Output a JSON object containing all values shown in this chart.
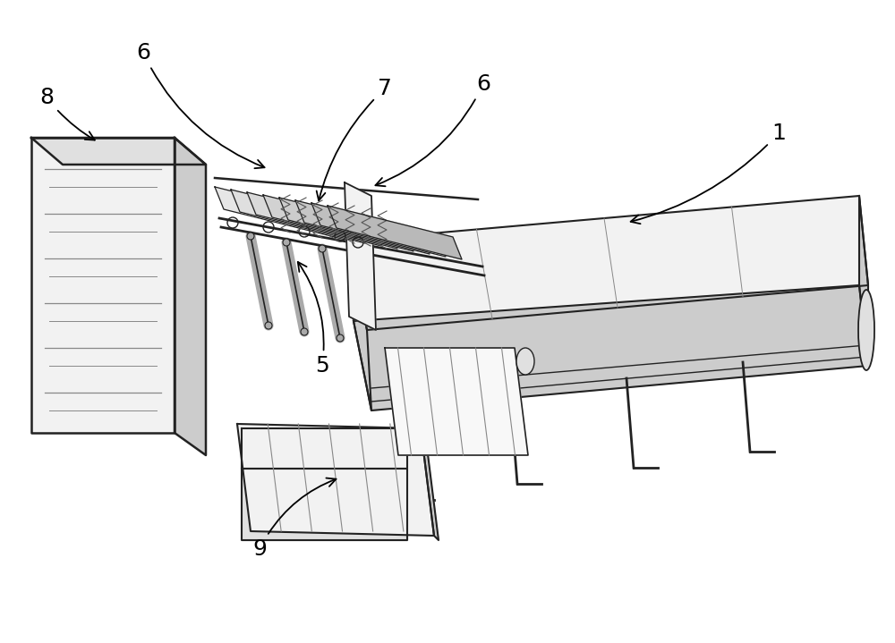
{
  "bg_color": "#ffffff",
  "line_color": "#222222",
  "light_gray": "#aaaaaa",
  "mid_gray": "#888888",
  "face_light": "#f2f2f2",
  "face_mid": "#e0e0e0",
  "face_dark": "#cccccc",
  "label_fontsize": 18,
  "figsize": [
    10.0,
    7.19
  ]
}
